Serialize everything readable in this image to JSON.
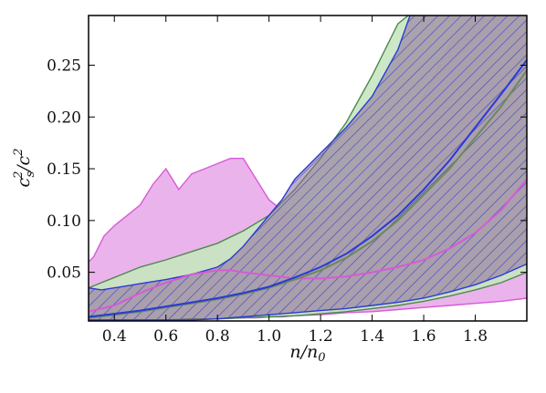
{
  "chart_data": {
    "type": "area",
    "title": "",
    "xlabel": "n/n0",
    "ylabel": "c_s^2/c^2",
    "xlim": [
      0.3,
      2.0
    ],
    "ylim": [
      0.003,
      0.298
    ],
    "xticks": [
      0.4,
      0.6,
      0.8,
      1.0,
      1.2,
      1.4,
      1.6,
      1.8
    ],
    "xtick_labels": [
      "0.4",
      "0.6",
      "0.8",
      "1.0",
      "1.2",
      "1.4",
      "1.6",
      "1.8"
    ],
    "yticks": [
      0.05,
      0.1,
      0.15,
      0.2,
      0.25
    ],
    "ytick_labels": [
      "0.05",
      "0.10",
      "0.15",
      "0.20",
      "0.25"
    ],
    "grid": false,
    "legend": "none",
    "colors": {
      "magenta": "#d75ad7",
      "magenta_fill": "#e8a6e8",
      "green": "#6a8a5a",
      "green_fill": "#c8e6c0",
      "blue": "#2a3ad6",
      "hatch_fill": "#8e6a98"
    },
    "bands": [
      {
        "id": "magenta-band",
        "color": "magenta",
        "x": [
          0.3,
          0.32,
          0.36,
          0.4,
          0.45,
          0.5,
          0.55,
          0.6,
          0.65,
          0.7,
          0.75,
          0.8,
          0.85,
          0.9,
          0.95,
          1.0,
          1.05,
          1.1,
          1.2,
          1.3,
          1.4,
          1.5,
          1.6,
          1.7,
          1.8,
          1.9,
          2.0
        ],
        "upper": [
          0.06,
          0.065,
          0.085,
          0.095,
          0.105,
          0.115,
          0.135,
          0.15,
          0.13,
          0.145,
          0.15,
          0.155,
          0.16,
          0.16,
          0.14,
          0.12,
          0.11,
          0.105,
          0.108,
          0.12,
          0.145,
          0.18,
          0.22,
          0.27,
          0.3,
          0.3,
          0.3
        ],
        "lower": [
          0.004,
          0.004,
          0.004,
          0.004,
          0.004,
          0.004,
          0.004,
          0.004,
          0.004,
          0.004,
          0.005,
          0.005,
          0.006,
          0.006,
          0.006,
          0.007,
          0.007,
          0.008,
          0.009,
          0.011,
          0.012,
          0.014,
          0.016,
          0.018,
          0.02,
          0.022,
          0.025
        ]
      },
      {
        "id": "green-band",
        "color": "green",
        "x": [
          0.3,
          0.35,
          0.4,
          0.45,
          0.5,
          0.6,
          0.7,
          0.8,
          0.9,
          1.0,
          1.1,
          1.2,
          1.3,
          1.4,
          1.5,
          1.55,
          1.6,
          1.7,
          1.8,
          1.9,
          2.0
        ],
        "upper": [
          0.035,
          0.04,
          0.045,
          0.05,
          0.055,
          0.062,
          0.07,
          0.078,
          0.09,
          0.105,
          0.13,
          0.16,
          0.195,
          0.24,
          0.29,
          0.3,
          0.3,
          0.3,
          0.3,
          0.3,
          0.3
        ],
        "lower": [
          0.004,
          0.004,
          0.004,
          0.004,
          0.004,
          0.004,
          0.005,
          0.005,
          0.006,
          0.007,
          0.008,
          0.01,
          0.012,
          0.015,
          0.018,
          0.02,
          0.022,
          0.027,
          0.033,
          0.04,
          0.05
        ]
      },
      {
        "id": "blue-hatched-band",
        "color": "blue",
        "x": [
          0.3,
          0.35,
          0.4,
          0.45,
          0.5,
          0.6,
          0.7,
          0.8,
          0.85,
          0.9,
          0.95,
          1.0,
          1.05,
          1.1,
          1.2,
          1.3,
          1.4,
          1.5,
          1.55,
          1.6,
          1.7,
          1.8,
          1.9,
          2.0
        ],
        "upper": [
          0.035,
          0.033,
          0.035,
          0.037,
          0.039,
          0.043,
          0.048,
          0.055,
          0.063,
          0.075,
          0.09,
          0.105,
          0.12,
          0.14,
          0.165,
          0.19,
          0.22,
          0.265,
          0.3,
          0.3,
          0.3,
          0.3,
          0.3,
          0.3
        ],
        "lower": [
          0.004,
          0.004,
          0.004,
          0.004,
          0.004,
          0.004,
          0.004,
          0.005,
          0.006,
          0.007,
          0.008,
          0.009,
          0.01,
          0.011,
          0.013,
          0.015,
          0.018,
          0.021,
          0.023,
          0.025,
          0.031,
          0.038,
          0.047,
          0.058
        ]
      }
    ],
    "series": [
      {
        "id": "magenta-median",
        "color": "magenta",
        "x": [
          0.3,
          0.35,
          0.4,
          0.45,
          0.5,
          0.6,
          0.7,
          0.8,
          0.85,
          0.9,
          1.0,
          1.1,
          1.2,
          1.3,
          1.4,
          1.5,
          1.6,
          1.7,
          1.8,
          1.9,
          2.0
        ],
        "y": [
          0.012,
          0.015,
          0.018,
          0.024,
          0.03,
          0.04,
          0.048,
          0.052,
          0.052,
          0.05,
          0.047,
          0.044,
          0.044,
          0.046,
          0.05,
          0.055,
          0.062,
          0.073,
          0.088,
          0.11,
          0.14
        ]
      },
      {
        "id": "green-median",
        "color": "green",
        "x": [
          0.3,
          0.4,
          0.5,
          0.6,
          0.7,
          0.8,
          0.9,
          1.0,
          1.1,
          1.2,
          1.3,
          1.4,
          1.5,
          1.6,
          1.7,
          1.8,
          1.9,
          2.0
        ],
        "y": [
          0.006,
          0.009,
          0.012,
          0.016,
          0.02,
          0.024,
          0.029,
          0.035,
          0.043,
          0.052,
          0.064,
          0.08,
          0.1,
          0.125,
          0.15,
          0.18,
          0.21,
          0.245
        ]
      },
      {
        "id": "blue-median",
        "color": "blue",
        "x": [
          0.3,
          0.4,
          0.5,
          0.6,
          0.7,
          0.8,
          0.9,
          1.0,
          1.1,
          1.2,
          1.3,
          1.4,
          1.5,
          1.6,
          1.7,
          1.8,
          1.9,
          2.0
        ],
        "y": [
          0.007,
          0.01,
          0.013,
          0.017,
          0.021,
          0.025,
          0.03,
          0.036,
          0.045,
          0.055,
          0.068,
          0.085,
          0.105,
          0.13,
          0.158,
          0.19,
          0.222,
          0.255
        ]
      }
    ]
  }
}
